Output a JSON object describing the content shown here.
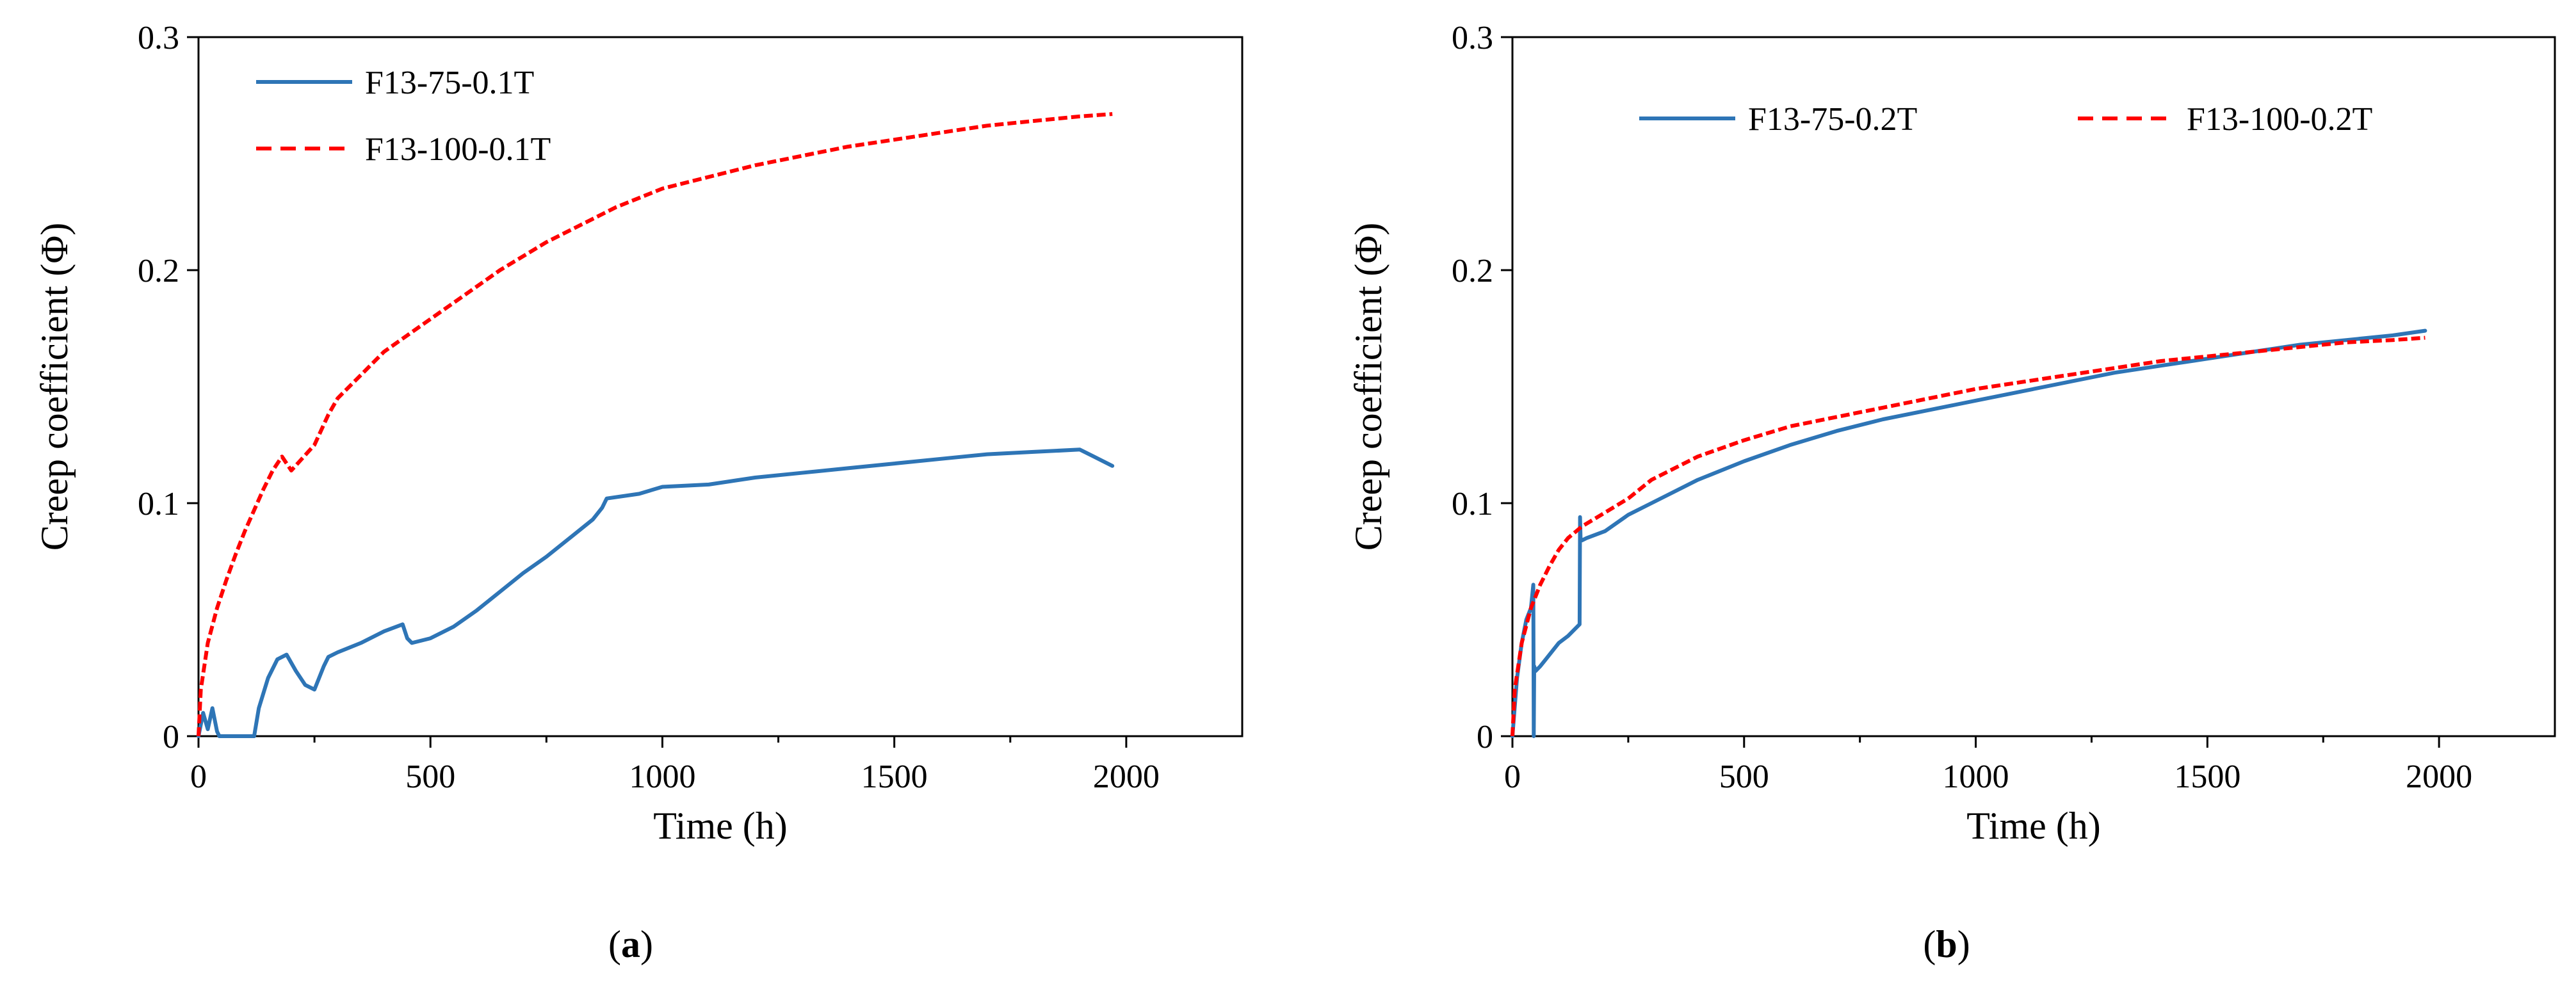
{
  "chart_data": [
    {
      "type": "line",
      "panel_label": "a",
      "title": "",
      "xlabel": "Time (h)",
      "ylabel": "Creep coefficient (Φ)",
      "xlim": [
        0,
        2250
      ],
      "ylim": [
        0,
        0.3
      ],
      "xticks": [
        0,
        500,
        1000,
        1500,
        2000
      ],
      "xtick_labels": [
        "0",
        "500",
        "1000",
        "1500",
        "2000"
      ],
      "yticks": [
        0,
        0.1,
        0.2,
        0.3
      ],
      "ytick_labels": [
        "0",
        "0.1",
        "0.2",
        "0.3"
      ],
      "grid": false,
      "legend_position": "top-left",
      "series": [
        {
          "name": "F13-75-0.1T",
          "color": "#2e75b6",
          "style": "solid",
          "x": [
            0,
            10,
            20,
            30,
            40,
            45,
            55,
            120,
            130,
            150,
            170,
            190,
            210,
            230,
            250,
            270,
            280,
            300,
            350,
            400,
            440,
            450,
            460,
            500,
            550,
            600,
            650,
            700,
            750,
            800,
            850,
            870,
            880,
            950,
            1000,
            1100,
            1200,
            1300,
            1400,
            1500,
            1600,
            1700,
            1800,
            1900,
            1930,
            1970
          ],
          "values": [
            0,
            0.01,
            0.003,
            0.012,
            0.002,
            0.0,
            0.0,
            0.0,
            0.012,
            0.025,
            0.033,
            0.035,
            0.028,
            0.022,
            0.02,
            0.03,
            0.034,
            0.036,
            0.04,
            0.045,
            0.048,
            0.042,
            0.04,
            0.042,
            0.047,
            0.054,
            0.062,
            0.07,
            0.077,
            0.085,
            0.093,
            0.098,
            0.102,
            0.104,
            0.107,
            0.108,
            0.111,
            0.113,
            0.115,
            0.117,
            0.119,
            0.121,
            0.122,
            0.123,
            0.12,
            0.116
          ]
        },
        {
          "name": "F13-100-0.1T",
          "color": "#ff0000",
          "style": "dashed",
          "x": [
            0,
            5,
            20,
            40,
            60,
            80,
            100,
            120,
            140,
            160,
            180,
            200,
            250,
            280,
            300,
            350,
            400,
            450,
            500,
            550,
            600,
            650,
            700,
            750,
            800,
            850,
            900,
            950,
            1000,
            1100,
            1200,
            1300,
            1400,
            1500,
            1600,
            1700,
            1800,
            1900,
            1970
          ],
          "values": [
            0,
            0.02,
            0.04,
            0.055,
            0.067,
            0.078,
            0.088,
            0.097,
            0.106,
            0.114,
            0.12,
            0.114,
            0.125,
            0.138,
            0.145,
            0.155,
            0.165,
            0.172,
            0.179,
            0.186,
            0.193,
            0.2,
            0.206,
            0.212,
            0.217,
            0.222,
            0.227,
            0.231,
            0.235,
            0.24,
            0.245,
            0.249,
            0.253,
            0.256,
            0.259,
            0.262,
            0.264,
            0.266,
            0.267
          ]
        }
      ]
    },
    {
      "type": "line",
      "panel_label": "b",
      "title": "",
      "xlabel": "Time (h)",
      "ylabel": "Creep coefficient (Φ)",
      "xlim": [
        0,
        2250
      ],
      "ylim": [
        0,
        0.3
      ],
      "xticks": [
        0,
        500,
        1000,
        1500,
        2000
      ],
      "xtick_labels": [
        "0",
        "500",
        "1000",
        "1500",
        "2000"
      ],
      "yticks": [
        0,
        0.1,
        0.2,
        0.3
      ],
      "ytick_labels": [
        "0",
        "0.1",
        "0.2",
        "0.3"
      ],
      "grid": false,
      "legend_position": "top",
      "series": [
        {
          "name": "F13-75-0.2T",
          "color": "#2e75b6",
          "style": "solid",
          "x": [
            0,
            10,
            20,
            30,
            40,
            45,
            46,
            47,
            50,
            60,
            80,
            100,
            120,
            145,
            146,
            147,
            150,
            160,
            200,
            250,
            300,
            400,
            500,
            600,
            700,
            800,
            900,
            1000,
            1100,
            1200,
            1300,
            1400,
            1500,
            1600,
            1700,
            1800,
            1900,
            1970
          ],
          "values": [
            0,
            0.025,
            0.04,
            0.05,
            0.055,
            0.065,
            0.0,
            0.03,
            0.028,
            0.03,
            0.035,
            0.04,
            0.043,
            0.048,
            0.094,
            0.085,
            0.084,
            0.085,
            0.088,
            0.095,
            0.1,
            0.11,
            0.118,
            0.125,
            0.131,
            0.136,
            0.14,
            0.144,
            0.148,
            0.152,
            0.156,
            0.159,
            0.162,
            0.165,
            0.168,
            0.17,
            0.172,
            0.174
          ]
        },
        {
          "name": "F13-100-0.2T",
          "color": "#ff0000",
          "style": "dashed",
          "x": [
            0,
            5,
            20,
            40,
            60,
            80,
            100,
            120,
            150,
            200,
            250,
            300,
            400,
            500,
            600,
            700,
            800,
            900,
            1000,
            1100,
            1200,
            1300,
            1400,
            1500,
            1600,
            1700,
            1800,
            1900,
            1970
          ],
          "values": [
            0,
            0.02,
            0.04,
            0.055,
            0.065,
            0.073,
            0.08,
            0.085,
            0.09,
            0.096,
            0.102,
            0.11,
            0.12,
            0.127,
            0.133,
            0.137,
            0.141,
            0.145,
            0.149,
            0.152,
            0.155,
            0.158,
            0.161,
            0.163,
            0.165,
            0.167,
            0.169,
            0.17,
            0.171
          ]
        }
      ]
    }
  ]
}
